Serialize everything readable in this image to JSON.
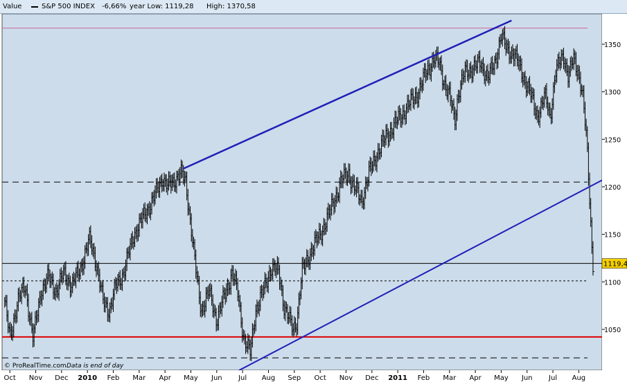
{
  "header": {
    "value_label": "Value",
    "index_name": "S&P 500 INDEX",
    "change": "-6,66%",
    "year_low": "year Low: 1119,28",
    "year_high": "High: 1370,58"
  },
  "footer": {
    "copyright": "© ProRealTime.com",
    "disclaimer": "Data is end of day"
  },
  "colors": {
    "background": "#ccdcea",
    "price": "#000000",
    "channel": "#1f1fb8",
    "support": "#dd0000",
    "resistance_top": "#cc6699",
    "last_price_box": "#f5d000"
  },
  "chart_data": {
    "type": "line",
    "style": "bar",
    "title": "S&P 500 INDEX",
    "ylim": [
      1007,
      1382
    ],
    "y_ticks": [
      1050,
      1100,
      1150,
      1200,
      1250,
      1300,
      1350
    ],
    "y_tick_labels": [
      "1050",
      "1100",
      "1150",
      "1200",
      "1250",
      "1300",
      "1350"
    ],
    "x_tick_labels": [
      "Oct",
      "Nov",
      "Dec",
      "2010",
      "Feb",
      "Mar",
      "Apr",
      "May",
      "Jun",
      "Jul",
      "Aug",
      "Sep",
      "Oct",
      "Nov",
      "Dec",
      "2011",
      "Feb",
      "Mar",
      "Apr",
      "May",
      "Jun",
      "Jul",
      "Aug"
    ],
    "x_tick_months": [
      0,
      1,
      2,
      3,
      4,
      5,
      6,
      7,
      8,
      9,
      10,
      11,
      12,
      13,
      14,
      15,
      16,
      17,
      18,
      19,
      20,
      21,
      22
    ],
    "x_range_months": [
      -0.3,
      22.9
    ],
    "series": [
      {
        "values": [
          [
            -0.2,
            1080
          ],
          [
            0.0,
            1040
          ],
          [
            0.3,
            1080
          ],
          [
            0.6,
            1095
          ],
          [
            0.9,
            1040
          ],
          [
            1.2,
            1090
          ],
          [
            1.5,
            1105
          ],
          [
            1.8,
            1090
          ],
          [
            2.1,
            1110
          ],
          [
            2.4,
            1095
          ],
          [
            2.8,
            1120
          ],
          [
            3.1,
            1145
          ],
          [
            3.3,
            1125
          ],
          [
            3.6,
            1080
          ],
          [
            3.85,
            1070
          ],
          [
            4.1,
            1095
          ],
          [
            4.4,
            1110
          ],
          [
            4.8,
            1150
          ],
          [
            5.2,
            1170
          ],
          [
            5.6,
            1190
          ],
          [
            5.9,
            1210
          ],
          [
            6.1,
            1200
          ],
          [
            6.3,
            1205
          ],
          [
            6.6,
            1215
          ],
          [
            6.8,
            1205
          ],
          [
            7.0,
            1160
          ],
          [
            7.2,
            1110
          ],
          [
            7.4,
            1070
          ],
          [
            7.7,
            1090
          ],
          [
            8.0,
            1060
          ],
          [
            8.3,
            1085
          ],
          [
            8.6,
            1110
          ],
          [
            8.8,
            1090
          ],
          [
            9.05,
            1040
          ],
          [
            9.3,
            1025
          ],
          [
            9.5,
            1070
          ],
          [
            9.8,
            1090
          ],
          [
            10.1,
            1115
          ],
          [
            10.4,
            1110
          ],
          [
            10.6,
            1075
          ],
          [
            10.8,
            1060
          ],
          [
            10.95,
            1050
          ],
          [
            11.1,
            1060
          ],
          [
            11.3,
            1110
          ],
          [
            11.6,
            1130
          ],
          [
            12.0,
            1150
          ],
          [
            12.4,
            1175
          ],
          [
            12.8,
            1205
          ],
          [
            13.1,
            1215
          ],
          [
            13.3,
            1200
          ],
          [
            13.6,
            1185
          ],
          [
            13.9,
            1215
          ],
          [
            14.2,
            1235
          ],
          [
            14.6,
            1255
          ],
          [
            15.0,
            1270
          ],
          [
            15.4,
            1285
          ],
          [
            15.8,
            1300
          ],
          [
            16.1,
            1320
          ],
          [
            16.4,
            1335
          ],
          [
            16.6,
            1330
          ],
          [
            16.8,
            1310
          ],
          [
            17.0,
            1295
          ],
          [
            17.2,
            1270
          ],
          [
            17.35,
            1300
          ],
          [
            17.6,
            1320
          ],
          [
            17.9,
            1325
          ],
          [
            18.2,
            1330
          ],
          [
            18.5,
            1315
          ],
          [
            18.75,
            1330
          ],
          [
            19.0,
            1360
          ],
          [
            19.2,
            1345
          ],
          [
            19.5,
            1340
          ],
          [
            19.8,
            1320
          ],
          [
            20.1,
            1300
          ],
          [
            20.4,
            1275
          ],
          [
            20.7,
            1295
          ],
          [
            20.9,
            1275
          ],
          [
            21.1,
            1320
          ],
          [
            21.4,
            1340
          ],
          [
            21.6,
            1315
          ],
          [
            21.8,
            1335
          ],
          [
            22.0,
            1320
          ],
          [
            22.15,
            1295
          ],
          [
            22.3,
            1250
          ],
          [
            22.4,
            1200
          ],
          [
            22.5,
            1140
          ],
          [
            22.55,
            1119.4
          ]
        ]
      }
    ],
    "trend_lines": [
      {
        "name": "channel_upper",
        "from": [
          6.7,
          1219
        ],
        "to": [
          19.4,
          1375
        ]
      },
      {
        "name": "channel_lower",
        "from": [
          8.8,
          1006
        ],
        "to": [
          22.9,
          1207
        ]
      }
    ],
    "horizontal_lines": [
      {
        "value": 1367,
        "style": "solid",
        "color": "#cc6699"
      },
      {
        "value": 1205,
        "style": "dashed",
        "color": "#000000"
      },
      {
        "value": 1119.4,
        "style": "solid",
        "color": "#000000"
      },
      {
        "value": 1101,
        "style": "dotted",
        "color": "#000000"
      },
      {
        "value": 1042,
        "style": "solid",
        "color": "#dd0000"
      },
      {
        "value": 1020,
        "style": "dashed",
        "color": "#000000"
      }
    ],
    "last_price": 1119.4,
    "last_price_label": "1119,4"
  }
}
